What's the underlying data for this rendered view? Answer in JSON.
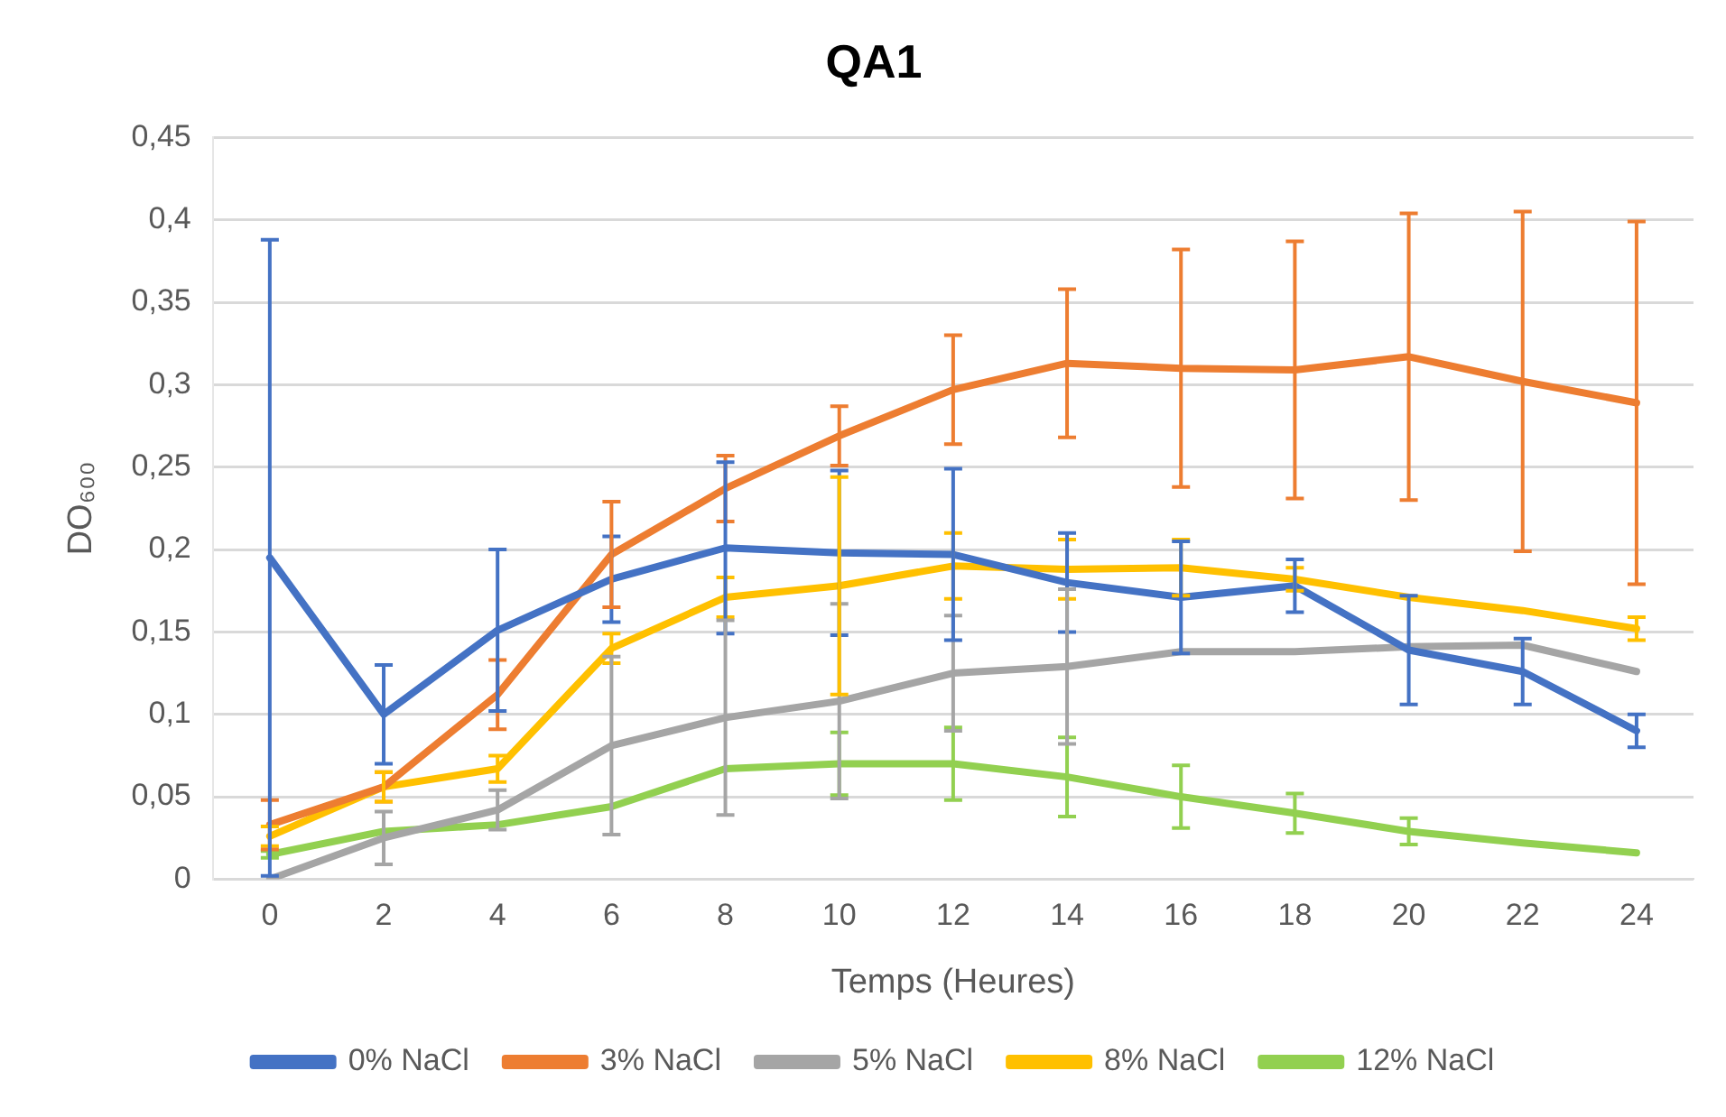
{
  "chart_data": {
    "type": "line",
    "title": "QA1",
    "xlabel": "Temps (Heures)",
    "ylabel": "DO₆₀₀",
    "categories": [
      "0",
      "2",
      "4",
      "6",
      "8",
      "10",
      "12",
      "14",
      "16",
      "18",
      "20",
      "22",
      "24"
    ],
    "ylim": [
      0,
      0.45
    ],
    "yticks": [
      0,
      {
        "value": 0.05,
        "label": "0,05"
      },
      {
        "value": 0.1,
        "label": "0,1"
      },
      {
        "value": 0.15,
        "label": "0,15"
      },
      {
        "value": 0.2,
        "label": "0,2"
      },
      {
        "value": 0.25,
        "label": "0,25"
      },
      {
        "value": 0.3,
        "label": "0,3"
      },
      {
        "value": 0.35,
        "label": "0,35"
      },
      {
        "value": 0.4,
        "label": "0,4"
      },
      {
        "value": 0.45,
        "label": "0,45"
      }
    ],
    "grid": "y",
    "legend": "bottom",
    "marker": "none",
    "line_style": "solid",
    "series": [
      {
        "name": "0% NaCl",
        "color": "#4472c4",
        "values": [
          0.195,
          0.1,
          0.151,
          0.182,
          0.201,
          0.198,
          0.197,
          0.18,
          0.171,
          0.178,
          0.139,
          0.126,
          0.09
        ],
        "errors": [
          0.193,
          0.03,
          0.049,
          0.026,
          0.052,
          0.05,
          0.052,
          0.03,
          0.034,
          0.016,
          0.033,
          0.02,
          0.01
        ]
      },
      {
        "name": "3% NaCl",
        "color": "#ed7d31",
        "values": [
          0.033,
          0.056,
          0.112,
          0.197,
          0.237,
          0.269,
          0.297,
          0.313,
          0.31,
          0.309,
          0.317,
          0.302,
          0.289
        ],
        "errors": [
          0.015,
          0.009,
          0.021,
          0.032,
          0.02,
          0.018,
          0.033,
          0.045,
          0.072,
          0.078,
          0.087,
          0.103,
          0.11
        ]
      },
      {
        "name": "5% NaCl",
        "color": "#a5a5a5",
        "values": [
          0.0,
          0.025,
          0.042,
          0.081,
          0.098,
          0.108,
          0.125,
          0.129,
          0.138,
          0.138,
          0.141,
          0.142,
          0.126
        ],
        "errors": [
          null,
          0.016,
          0.012,
          0.054,
          0.059,
          0.059,
          0.035,
          0.047,
          null,
          null,
          null,
          null,
          null
        ]
      },
      {
        "name": "8% NaCl",
        "color": "#ffc000",
        "values": [
          0.026,
          0.056,
          0.067,
          0.14,
          0.171,
          0.178,
          0.19,
          0.188,
          0.189,
          0.182,
          0.171,
          0.163,
          0.152
        ],
        "errors": [
          0.006,
          0.009,
          0.008,
          0.009,
          0.012,
          0.066,
          0.02,
          0.018,
          0.017,
          0.007,
          null,
          null,
          0.007
        ]
      },
      {
        "name": "12% NaCl",
        "color": "#92d050",
        "values": [
          0.015,
          0.029,
          0.033,
          0.044,
          0.067,
          0.07,
          0.07,
          0.062,
          0.05,
          0.04,
          0.029,
          0.022,
          0.016
        ],
        "errors": [
          0.002,
          null,
          null,
          null,
          null,
          0.019,
          0.022,
          0.024,
          0.019,
          0.012,
          0.008,
          null,
          null
        ]
      }
    ]
  }
}
